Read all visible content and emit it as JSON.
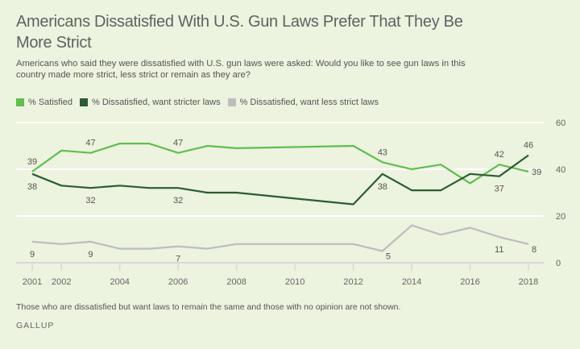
{
  "header": {
    "title": "Americans Dissatisfied With U.S. Gun Laws Prefer That They Be More Strict",
    "subtitle": "Americans who said they were dissatisfied with U.S. gun laws were asked: Would you like to see gun laws in this country made more strict, less strict or remain as they are?"
  },
  "footer": {
    "note": "Those who are dissatisfied but want laws to remain the same and those with no opinion are not shown.",
    "source": "GALLUP"
  },
  "chart_data": {
    "type": "line",
    "title": "Americans Dissatisfied With U.S. Gun Laws Prefer That They Be More Strict",
    "xlabel": "",
    "ylabel": "",
    "x": [
      2001,
      2002,
      2003,
      2004,
      2005,
      2006,
      2007,
      2008,
      2012,
      2013,
      2014,
      2015,
      2016,
      2017,
      2018
    ],
    "xlim": [
      2001,
      2018
    ],
    "ylim": [
      0,
      60
    ],
    "x_ticks": [
      "2001",
      "2002",
      "2004",
      "2006",
      "2008",
      "2010",
      "2012",
      "2014",
      "2016",
      "2018"
    ],
    "x_tick_values": [
      2001,
      2002,
      2004,
      2006,
      2008,
      2010,
      2012,
      2014,
      2016,
      2018
    ],
    "y_ticks": [
      "0",
      "20",
      "40",
      "60"
    ],
    "y_tick_values": [
      0,
      20,
      40,
      60
    ],
    "grid": true,
    "legend_position": "top-left",
    "series": [
      {
        "name": "% Satisfied",
        "color": "#5fbf4f",
        "values": [
          39,
          48,
          47,
          51,
          51,
          47,
          50,
          49,
          50,
          43,
          40,
          42,
          34,
          42,
          39
        ],
        "labels": [
          {
            "x": 2001,
            "value": 39,
            "text": "39",
            "pos": "above"
          },
          {
            "x": 2003,
            "value": 47,
            "text": "47",
            "pos": "above"
          },
          {
            "x": 2006,
            "value": 47,
            "text": "47",
            "pos": "above"
          },
          {
            "x": 2013,
            "value": 43,
            "text": "43",
            "pos": "above"
          },
          {
            "x": 2017,
            "value": 42,
            "text": "42",
            "pos": "above"
          },
          {
            "x": 2018,
            "value": 39,
            "text": "39",
            "pos": "right"
          }
        ]
      },
      {
        "name": "% Dissatisfied, want stricter laws",
        "color": "#2b5c34",
        "values": [
          38,
          33,
          32,
          33,
          32,
          32,
          30,
          30,
          25,
          38,
          31,
          31,
          38,
          37,
          46
        ],
        "labels": [
          {
            "x": 2001,
            "value": 38,
            "text": "38",
            "pos": "below"
          },
          {
            "x": 2003,
            "value": 32,
            "text": "32",
            "pos": "below"
          },
          {
            "x": 2006,
            "value": 32,
            "text": "32",
            "pos": "below"
          },
          {
            "x": 2013,
            "value": 38,
            "text": "38",
            "pos": "below"
          },
          {
            "x": 2017,
            "value": 37,
            "text": "37",
            "pos": "below"
          },
          {
            "x": 2018,
            "value": 46,
            "text": "46",
            "pos": "above"
          }
        ]
      },
      {
        "name": "% Dissatisfied, want less strict laws",
        "color": "#bdbdbd",
        "values": [
          9,
          8,
          9,
          6,
          6,
          7,
          6,
          8,
          8,
          5,
          16,
          12,
          15,
          11,
          8
        ],
        "labels": [
          {
            "x": 2001,
            "value": 9,
            "text": "9",
            "pos": "below"
          },
          {
            "x": 2003,
            "value": 9,
            "text": "9",
            "pos": "below"
          },
          {
            "x": 2006,
            "value": 7,
            "text": "7",
            "pos": "below"
          },
          {
            "x": 2013,
            "value": 5,
            "text": "5",
            "pos": "right"
          },
          {
            "x": 2017,
            "value": 11,
            "text": "11",
            "pos": "below"
          },
          {
            "x": 2018,
            "value": 8,
            "text": "8",
            "pos": "right"
          }
        ]
      }
    ]
  }
}
